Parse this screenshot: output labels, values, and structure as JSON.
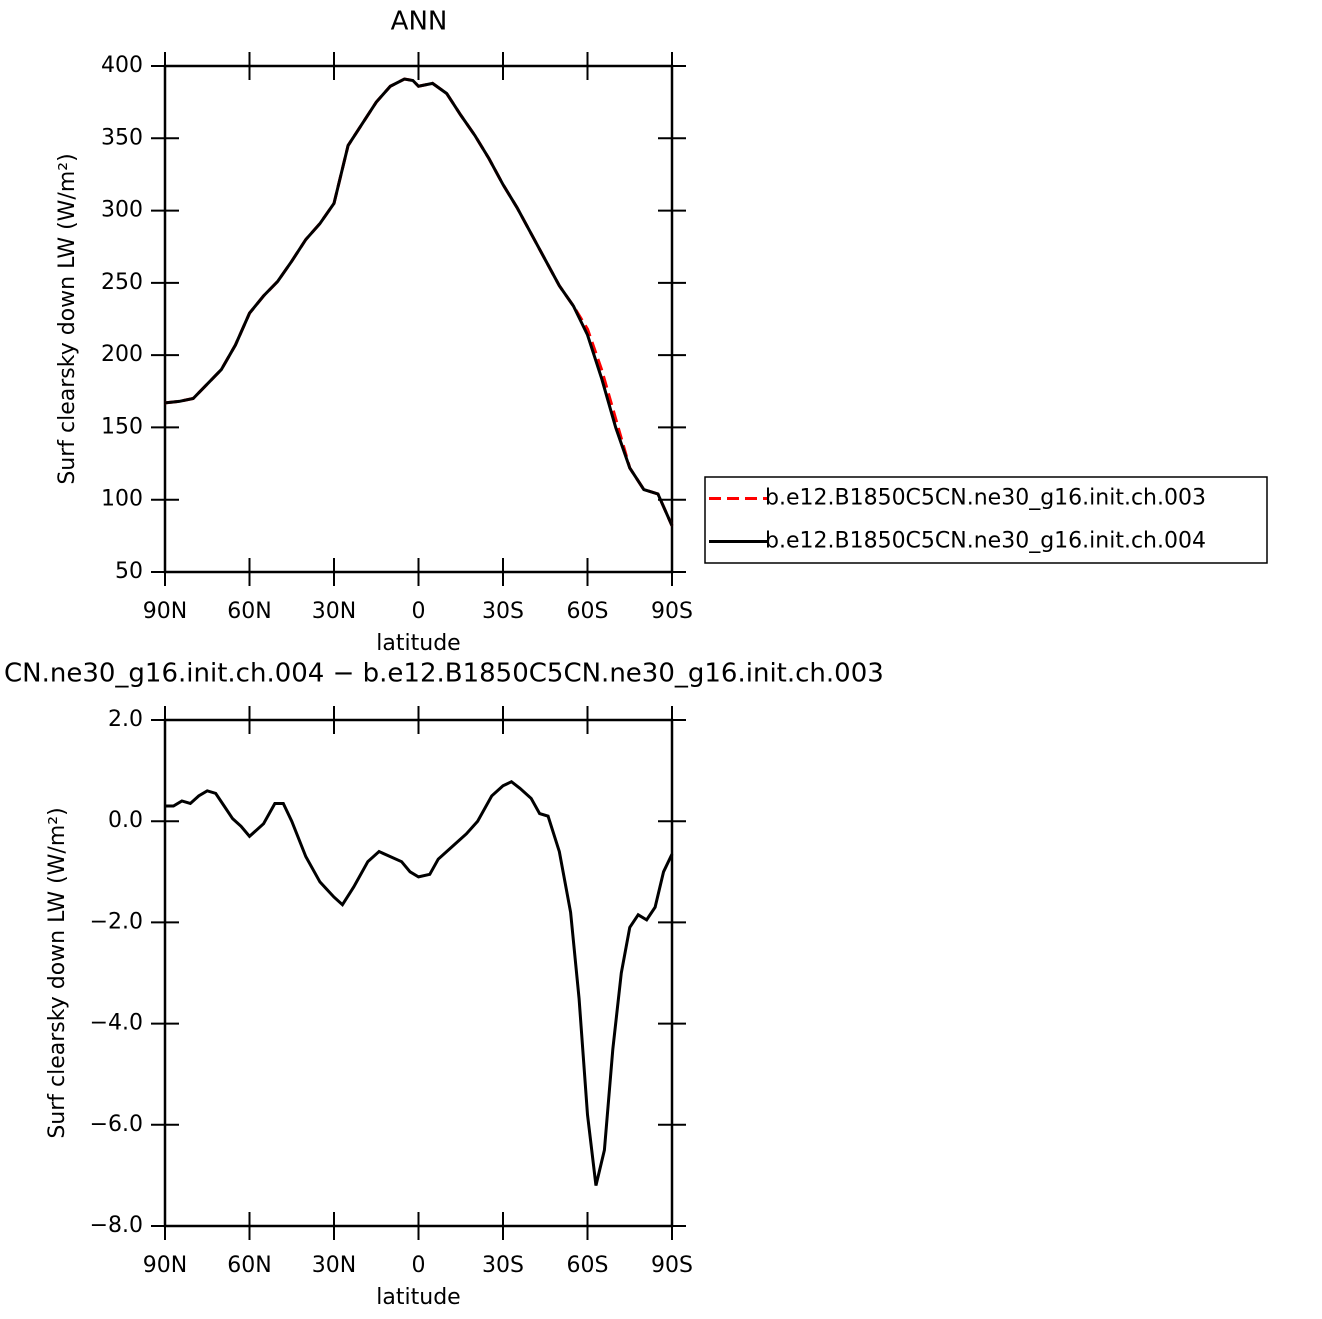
{
  "chart_data": [
    {
      "type": "line",
      "title": "ANN",
      "xlabel": "latitude",
      "ylabel": "Surf clearsky down LW (W/m²)",
      "x": [
        90,
        85,
        80,
        75,
        70,
        65,
        60,
        55,
        50,
        45,
        40,
        35,
        30,
        25,
        20,
        15,
        10,
        5,
        2,
        0,
        -5,
        -10,
        -15,
        -20,
        -25,
        -30,
        -35,
        -40,
        -45,
        -50,
        -55,
        -60,
        -65,
        -70,
        -75,
        -80,
        -85,
        -90
      ],
      "series": [
        {
          "name": "b.e12.B1850C5CN.ne30_g16.init.ch.003",
          "color": "#ff0000",
          "line_style": "dashed",
          "values": [
            167,
            168,
            170,
            180,
            190,
            207,
            229,
            241,
            251,
            265,
            280,
            291,
            305,
            345,
            360,
            375,
            386,
            391,
            390,
            386,
            388,
            381,
            366,
            352,
            336,
            318,
            302,
            284,
            266,
            248,
            234,
            218,
            190,
            156,
            122,
            107,
            104,
            82
          ]
        },
        {
          "name": "b.e12.B1850C5CN.ne30_g16.init.ch.004",
          "color": "#000000",
          "line_style": "solid",
          "values": [
            167,
            168,
            170,
            180,
            190,
            207,
            229,
            241,
            251,
            265,
            280,
            291,
            305,
            345,
            360,
            375,
            386,
            391,
            390,
            386,
            388,
            381,
            366,
            352,
            336,
            318,
            302,
            284,
            266,
            248,
            234,
            214,
            184,
            150,
            122,
            107,
            104,
            82
          ]
        }
      ],
      "xlim": [
        90,
        -90
      ],
      "xticks": [
        {
          "value": 90,
          "label": "90N"
        },
        {
          "value": 60,
          "label": "60N"
        },
        {
          "value": 30,
          "label": "30N"
        },
        0,
        {
          "value": -30,
          "label": "30S"
        },
        {
          "value": -60,
          "label": "60S"
        },
        {
          "value": -90,
          "label": "90S"
        }
      ],
      "ylim": [
        50,
        400
      ],
      "yticks": [
        50,
        100,
        150,
        200,
        250,
        300,
        350,
        400
      ],
      "legend": "right"
    },
    {
      "type": "line",
      "title": "CN.ne30_g16.init.ch.004 − b.e12.B1850C5CN.ne30_g16.init.ch.003",
      "xlabel": "latitude",
      "ylabel": "Surf clearsky down LW (W/m²)",
      "x": [
        90,
        87,
        84,
        81,
        78,
        75,
        72,
        69,
        66,
        63,
        60,
        55,
        51,
        48,
        45,
        40,
        35,
        30,
        27,
        23,
        18,
        14,
        10,
        6,
        3,
        0,
        -4,
        -7,
        -12,
        -17,
        -21,
        -26,
        -30,
        -33,
        -36,
        -40,
        -43,
        -46,
        -50,
        -54,
        -57,
        -60,
        -63,
        -66,
        -69,
        -72,
        -75,
        -78,
        -81,
        -84,
        -87,
        -90
      ],
      "series": [
        {
          "color": "#000000",
          "line_style": "solid",
          "values": [
            0.3,
            0.3,
            0.4,
            0.35,
            0.5,
            0.6,
            0.55,
            0.3,
            0.05,
            -0.1,
            -0.3,
            -0.05,
            0.35,
            0.35,
            0,
            -0.7,
            -1.2,
            -1.5,
            -1.65,
            -1.3,
            -0.8,
            -0.6,
            -0.7,
            -0.8,
            -1.0,
            -1.1,
            -1.05,
            -0.75,
            -0.5,
            -0.25,
            0.0,
            0.5,
            0.7,
            0.78,
            0.65,
            0.45,
            0.15,
            0.1,
            -0.6,
            -1.8,
            -3.5,
            -5.8,
            -7.2,
            -6.5,
            -4.5,
            -3.0,
            -2.1,
            -1.85,
            -1.95,
            -1.7,
            -1.0,
            -0.65
          ]
        }
      ],
      "xlim": [
        90,
        -90
      ],
      "xticks": [
        {
          "value": 90,
          "label": "90N"
        },
        {
          "value": 60,
          "label": "60N"
        },
        {
          "value": 30,
          "label": "30N"
        },
        0,
        {
          "value": -30,
          "label": "30S"
        },
        {
          "value": -60,
          "label": "60S"
        },
        {
          "value": -90,
          "label": "90S"
        }
      ],
      "ylim": [
        -8,
        2
      ],
      "yticks": [
        {
          "value": -8,
          "label": "−8.0"
        },
        {
          "value": -6,
          "label": "−6.0"
        },
        {
          "value": -4,
          "label": "−4.0"
        },
        {
          "value": -2,
          "label": "−2.0"
        },
        {
          "value": 0,
          "label": "0.0"
        },
        {
          "value": 2,
          "label": "2.0"
        }
      ]
    }
  ]
}
